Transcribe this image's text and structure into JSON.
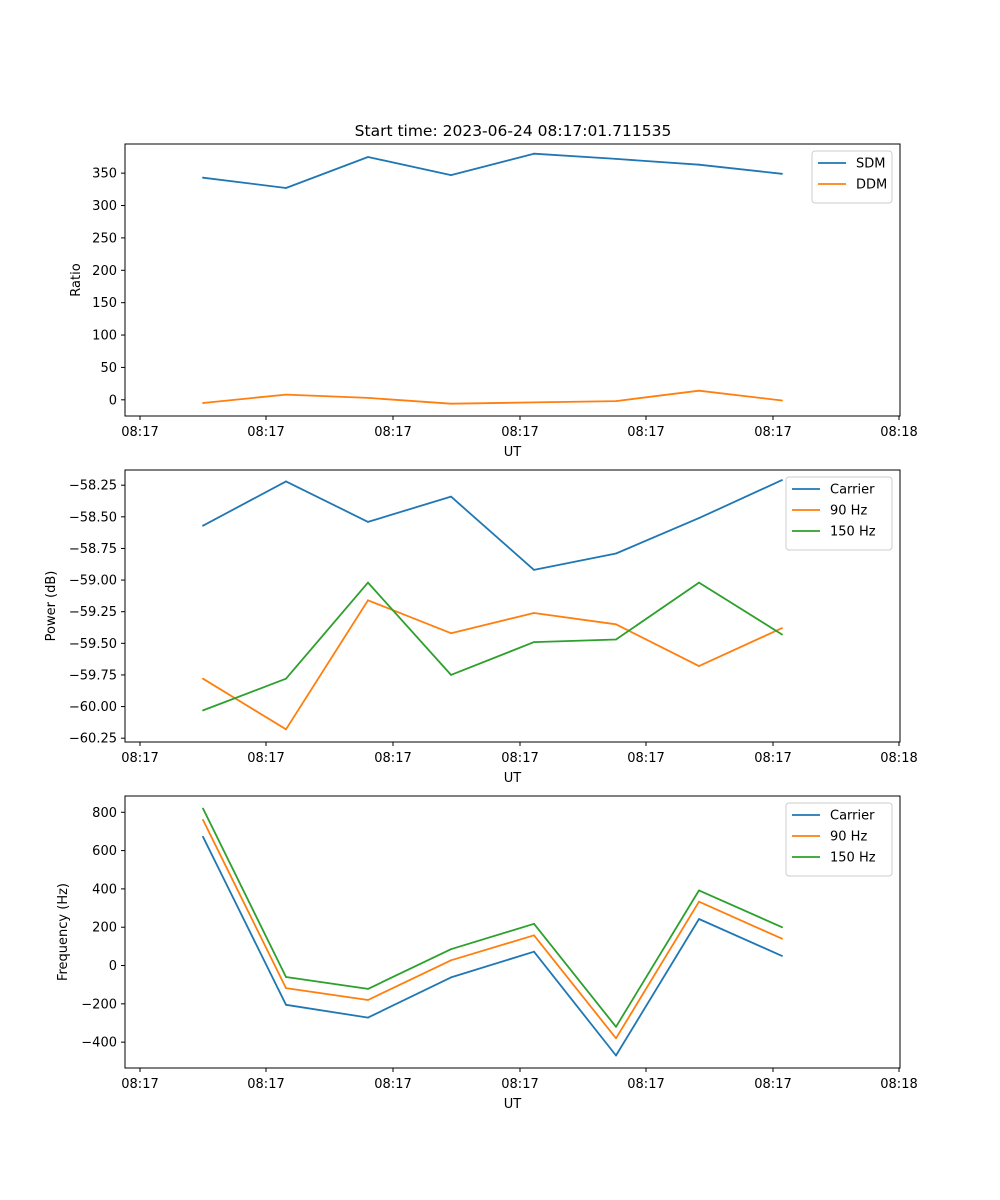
{
  "figure": {
    "title": "Start time: 2023-06-24 08:17:01.711535"
  },
  "chart_data": [
    {
      "type": "line",
      "title": "Start time: 2023-06-24 08:17:01.711535",
      "xlabel": "UT",
      "ylabel": "Ratio",
      "x_tick_labels": [
        "08:17",
        "08:17",
        "08:17",
        "08:17",
        "08:17",
        "08:17",
        "08:18"
      ],
      "ylim": [
        -25,
        395
      ],
      "y_ticks": [
        0,
        50,
        100,
        150,
        200,
        250,
        300,
        350
      ],
      "legend_position": "top-right",
      "grid": false,
      "series": [
        {
          "name": "SDM",
          "color": "#1f77b4",
          "values": [
            343,
            327,
            375,
            347,
            380,
            372,
            363,
            349
          ]
        },
        {
          "name": "DDM",
          "color": "#ff7f0e",
          "values": [
            -5,
            8,
            3,
            -6,
            -4,
            -2,
            14,
            -1
          ]
        }
      ]
    },
    {
      "type": "line",
      "title": "",
      "xlabel": "UT",
      "ylabel": "Power (dB)",
      "x_tick_labels": [
        "08:17",
        "08:17",
        "08:17",
        "08:17",
        "08:17",
        "08:17",
        "08:18"
      ],
      "ylim": [
        -60.28,
        -58.13
      ],
      "y_ticks": [
        -60.25,
        -60.0,
        -59.75,
        -59.5,
        -59.25,
        -59.0,
        -58.75,
        -58.5,
        -58.25
      ],
      "y_tick_labels": [
        "−60.25",
        "−60.00",
        "−59.75",
        "−59.50",
        "−59.25",
        "−59.00",
        "−58.75",
        "−58.50",
        "−58.25"
      ],
      "legend_position": "top-right",
      "grid": false,
      "series": [
        {
          "name": "Carrier",
          "color": "#1f77b4",
          "values": [
            -58.57,
            -58.22,
            -58.54,
            -58.34,
            -58.92,
            -58.79,
            -58.51,
            -58.21
          ]
        },
        {
          "name": "90 Hz",
          "color": "#ff7f0e",
          "values": [
            -59.78,
            -60.18,
            -59.16,
            -59.42,
            -59.26,
            -59.35,
            -59.68,
            -59.38
          ]
        },
        {
          "name": "150 Hz",
          "color": "#2ca02c",
          "values": [
            -60.03,
            -59.78,
            -59.02,
            -59.75,
            -59.49,
            -59.47,
            -59.02,
            -59.43
          ]
        }
      ]
    },
    {
      "type": "line",
      "title": "",
      "xlabel": "UT",
      "ylabel": "Frequency (Hz)",
      "x_tick_labels": [
        "08:17",
        "08:17",
        "08:17",
        "08:17",
        "08:17",
        "08:17",
        "08:18"
      ],
      "ylim": [
        -535,
        885
      ],
      "y_ticks": [
        -400,
        -200,
        0,
        200,
        400,
        600,
        800
      ],
      "y_tick_labels": [
        "−400",
        "−200",
        "0",
        "200",
        "400",
        "600",
        "800"
      ],
      "legend_position": "top-right",
      "grid": false,
      "series": [
        {
          "name": "Carrier",
          "color": "#1f77b4",
          "values": [
            672,
            -205,
            -272,
            -62,
            72,
            -470,
            243,
            50
          ]
        },
        {
          "name": "90 Hz",
          "color": "#ff7f0e",
          "values": [
            760,
            -118,
            -180,
            27,
            158,
            -380,
            333,
            140
          ]
        },
        {
          "name": "150 Hz",
          "color": "#2ca02c",
          "values": [
            820,
            -60,
            -122,
            85,
            218,
            -320,
            392,
            200
          ]
        }
      ]
    }
  ]
}
